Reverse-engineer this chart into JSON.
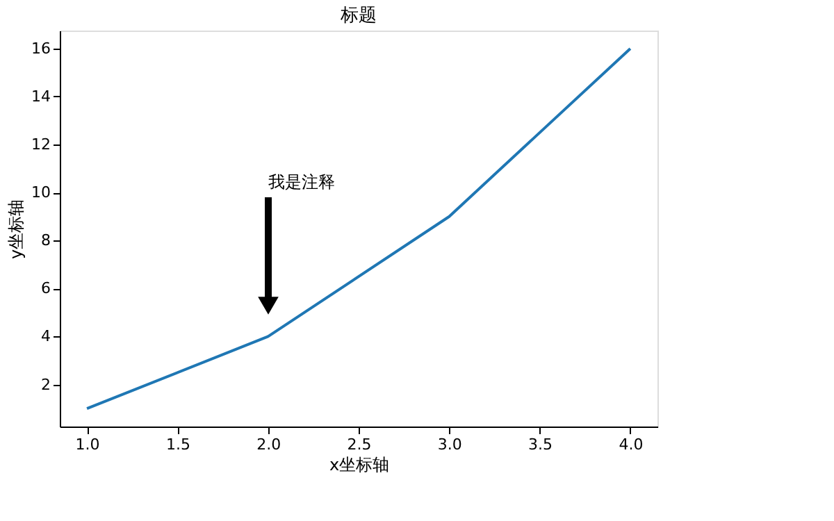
{
  "chart_data": {
    "type": "line",
    "title": "标题",
    "xlabel": "x坐标轴",
    "ylabel": "y坐标轴",
    "x": [
      1,
      2,
      3,
      4
    ],
    "series": [
      {
        "color": "#1f77b4",
        "values": [
          1,
          4,
          9,
          16
        ]
      }
    ],
    "xlim": [
      0.85,
      4.15
    ],
    "xticks": [
      {
        "value": 1,
        "label": "1.0"
      },
      {
        "value": 1.5,
        "label": "1.5"
      },
      {
        "value": 2,
        "label": "2.0"
      },
      {
        "value": 2.5,
        "label": "2.5"
      },
      {
        "value": 3,
        "label": "3.0"
      },
      {
        "value": 3.5,
        "label": "3.5"
      },
      {
        "value": 4,
        "label": "4.0"
      }
    ],
    "ylim": [
      0.25,
      16.75
    ],
    "yticks": [
      2,
      4,
      6,
      8,
      10,
      12,
      14,
      16
    ],
    "annotations": [
      "我是注释"
    ],
    "grid": false,
    "marker": "none",
    "line_style": "solid"
  }
}
